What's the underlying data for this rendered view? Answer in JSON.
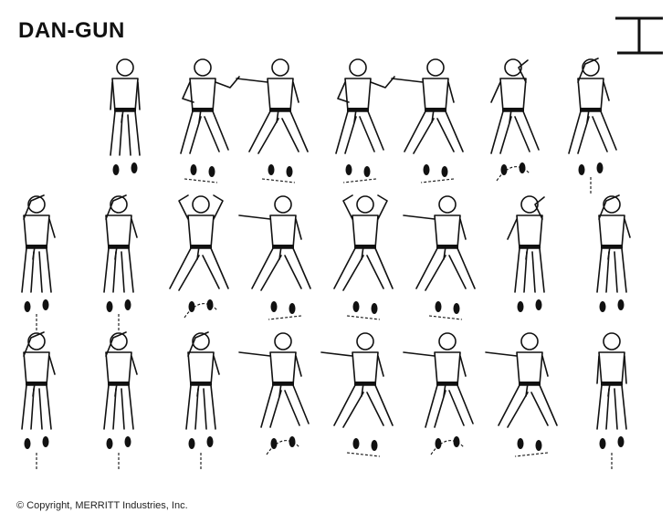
{
  "header": {
    "title": "DAN-GUN"
  },
  "emblem": {
    "icon": "dan-gun-pattern-symbol"
  },
  "footer": {
    "copyright": "© Copyright, MERRITT Industries, Inc."
  },
  "diagram": {
    "rows": [
      {
        "moves": [
          {
            "facing": "front",
            "arms": "ready",
            "stance": "parallel",
            "arrow": "none"
          },
          {
            "facing": "side",
            "arms": "guard",
            "stance": "L",
            "arrow": "right"
          },
          {
            "facing": "side",
            "arms": "punch",
            "stance": "walking",
            "arrow": "right"
          },
          {
            "facing": "side",
            "arms": "guard",
            "stance": "L",
            "arrow": "left"
          },
          {
            "facing": "side",
            "arms": "punch",
            "stance": "walking",
            "arrow": "left"
          },
          {
            "facing": "front",
            "arms": "block",
            "stance": "L",
            "arrow": "curve"
          },
          {
            "facing": "front",
            "arms": "high",
            "stance": "L",
            "arrow": "down"
          }
        ]
      },
      {
        "moves": [
          {
            "facing": "front",
            "arms": "high",
            "stance": "parallel",
            "arrow": "down"
          },
          {
            "facing": "front",
            "arms": "high",
            "stance": "parallel",
            "arrow": "down"
          },
          {
            "facing": "back",
            "arms": "twin",
            "stance": "walking",
            "arrow": "curve"
          },
          {
            "facing": "side",
            "arms": "punch",
            "stance": "walking",
            "arrow": "left"
          },
          {
            "facing": "side",
            "arms": "twin",
            "stance": "walking",
            "arrow": "right"
          },
          {
            "facing": "side",
            "arms": "punch",
            "stance": "walking",
            "arrow": "right"
          },
          {
            "facing": "back",
            "arms": "block",
            "stance": "parallel",
            "arrow": "none"
          },
          {
            "facing": "back",
            "arms": "high",
            "stance": "parallel",
            "arrow": "none"
          }
        ]
      },
      {
        "moves": [
          {
            "facing": "back",
            "arms": "high",
            "stance": "parallel",
            "arrow": "up"
          },
          {
            "facing": "back",
            "arms": "high",
            "stance": "parallel",
            "arrow": "up"
          },
          {
            "facing": "back",
            "arms": "high",
            "stance": "parallel",
            "arrow": "up"
          },
          {
            "facing": "front",
            "arms": "punch",
            "stance": "L",
            "arrow": "curve"
          },
          {
            "facing": "side",
            "arms": "punch",
            "stance": "walking",
            "arrow": "right"
          },
          {
            "facing": "front",
            "arms": "punch",
            "stance": "L",
            "arrow": "curve"
          },
          {
            "facing": "side",
            "arms": "punch",
            "stance": "walking",
            "arrow": "left"
          },
          {
            "facing": "front",
            "arms": "ready",
            "stance": "parallel",
            "arrow": "up"
          }
        ]
      }
    ]
  }
}
